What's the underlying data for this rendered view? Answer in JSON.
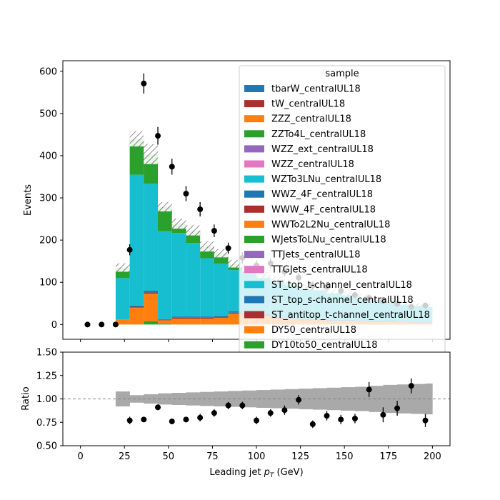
{
  "chart_data": [
    {
      "type": "bar",
      "stacked": true,
      "ylabel": "Events",
      "xlim": [
        -10,
        210
      ],
      "ylim": [
        -35,
        625
      ],
      "yticks": [
        0,
        100,
        200,
        300,
        400,
        500,
        600
      ],
      "bin_edges": [
        20,
        28,
        36,
        44,
        52,
        60,
        68,
        76,
        84,
        92,
        100,
        108,
        116,
        124,
        132,
        140,
        148,
        156,
        164,
        172,
        180,
        188,
        196,
        200
      ],
      "series": [
        {
          "name": "DY10to50_centralUL18",
          "color": "#2ca02c",
          "values": [
            0,
            0,
            8,
            2,
            0,
            0,
            0,
            0,
            0,
            0,
            0,
            0,
            0,
            0,
            0,
            0,
            0,
            0,
            0,
            0,
            0,
            0,
            0
          ]
        },
        {
          "name": "DY50_centralUL18",
          "color": "#ff7f0e",
          "values": [
            12,
            40,
            65,
            8,
            14,
            14,
            14,
            16,
            26,
            22,
            20,
            14,
            12,
            10,
            10,
            8,
            8,
            7,
            6,
            6,
            5,
            4,
            4
          ]
        },
        {
          "name": "ST_antitop_t-channel_centralUL18",
          "color": "#a9302f",
          "values": [
            0,
            2,
            3,
            1,
            2,
            2,
            2,
            2,
            2,
            2,
            2,
            2,
            1,
            1,
            1,
            1,
            1,
            1,
            1,
            1,
            1,
            1,
            1
          ]
        },
        {
          "name": "ST_top_s-channel_centralUL18",
          "color": "#1f77b4",
          "values": [
            0,
            3,
            4,
            2,
            3,
            3,
            3,
            3,
            3,
            3,
            3,
            2,
            2,
            2,
            2,
            2,
            2,
            2,
            2,
            2,
            1,
            1,
            1
          ]
        },
        {
          "name": "ST_top_t-channel_centralUL18",
          "color": "#17becf",
          "values": [
            98,
            310,
            254,
            208,
            198,
            174,
            138,
            123,
            98,
            93,
            84,
            83,
            78,
            72,
            68,
            64,
            59,
            55,
            50,
            46,
            42,
            40,
            37
          ]
        },
        {
          "name": "TTGJets_centralUL18",
          "color": "#e377c2",
          "values": [
            0,
            0,
            0,
            0,
            0,
            0,
            0,
            0,
            0,
            0,
            0,
            0,
            0,
            0,
            0,
            0,
            0,
            0,
            0,
            0,
            0,
            0,
            0
          ]
        },
        {
          "name": "TTJets_centralUL18",
          "color": "#9467bd",
          "values": [
            0,
            0,
            0,
            0,
            0,
            0,
            0,
            0,
            0,
            0,
            0,
            0,
            0,
            0,
            0,
            0,
            0,
            0,
            0,
            0,
            0,
            0,
            0
          ]
        },
        {
          "name": "WJetsToLNu_centralUL18",
          "color": "#2ca02c",
          "values": [
            25,
            85,
            70,
            58,
            22,
            30,
            28,
            25,
            15,
            14,
            8,
            8,
            6,
            5,
            5,
            4,
            4,
            3,
            3,
            3,
            2,
            2,
            2
          ]
        },
        {
          "name": "WWTo2L2Nu_centralUL18",
          "color": "#ff7f0e",
          "values": [
            0,
            0,
            0,
            0,
            0,
            0,
            0,
            0,
            0,
            0,
            0,
            0,
            0,
            0,
            0,
            0,
            0,
            0,
            0,
            0,
            0,
            0,
            0
          ]
        },
        {
          "name": "WWW_4F_centralUL18",
          "color": "#a9302f",
          "values": [
            0,
            0,
            0,
            0,
            0,
            0,
            0,
            0,
            0,
            0,
            0,
            0,
            0,
            0,
            0,
            0,
            0,
            0,
            0,
            0,
            0,
            0,
            0
          ]
        },
        {
          "name": "WWZ_4F_centralUL18",
          "color": "#1f77b4",
          "values": [
            0,
            0,
            0,
            0,
            0,
            0,
            0,
            0,
            0,
            0,
            0,
            0,
            0,
            0,
            0,
            0,
            0,
            0,
            0,
            0,
            0,
            0,
            0
          ]
        },
        {
          "name": "WZTo3LNu_centralUL18",
          "color": "#17becf",
          "values": [
            0,
            0,
            0,
            0,
            0,
            0,
            0,
            0,
            0,
            0,
            0,
            0,
            0,
            0,
            0,
            0,
            0,
            0,
            0,
            0,
            0,
            0,
            0
          ]
        },
        {
          "name": "WZZ_centralUL18",
          "color": "#e377c2",
          "values": [
            0,
            0,
            0,
            0,
            0,
            0,
            0,
            0,
            0,
            0,
            0,
            0,
            0,
            0,
            0,
            0,
            0,
            0,
            0,
            0,
            0,
            0,
            0
          ]
        },
        {
          "name": "WZZ_ext_centralUL18",
          "color": "#9467bd",
          "values": [
            0,
            0,
            0,
            0,
            0,
            0,
            0,
            0,
            0,
            0,
            0,
            0,
            0,
            0,
            0,
            0,
            0,
            0,
            0,
            0,
            0,
            0,
            0
          ]
        },
        {
          "name": "ZZTo4L_centralUL18",
          "color": "#2ca02c",
          "values": [
            0,
            0,
            0,
            0,
            0,
            0,
            0,
            0,
            0,
            0,
            0,
            0,
            0,
            0,
            0,
            0,
            0,
            0,
            0,
            0,
            0,
            0,
            0
          ]
        },
        {
          "name": "ZZZ_centralUL18",
          "color": "#ff7f0e",
          "values": [
            0,
            0,
            0,
            0,
            0,
            0,
            0,
            0,
            0,
            0,
            0,
            0,
            0,
            0,
            0,
            0,
            0,
            0,
            0,
            0,
            0,
            0,
            0
          ]
        },
        {
          "name": "tW_centralUL18",
          "color": "#a9302f",
          "values": [
            0,
            0,
            0,
            0,
            0,
            0,
            0,
            0,
            0,
            0,
            0,
            0,
            0,
            0,
            0,
            0,
            0,
            0,
            0,
            0,
            0,
            0,
            0
          ]
        },
        {
          "name": "tbarW_centralUL18",
          "color": "#1f77b4",
          "values": [
            0,
            0,
            0,
            0,
            0,
            0,
            0,
            0,
            0,
            0,
            0,
            0,
            0,
            0,
            0,
            0,
            0,
            0,
            0,
            0,
            0,
            0,
            0
          ]
        }
      ],
      "mc_uncertainty": [
        10,
        18,
        24,
        11,
        12,
        12,
        12,
        10,
        9,
        8,
        7,
        7,
        6,
        6,
        5,
        5,
        5,
        5,
        4,
        4,
        4,
        4,
        4
      ],
      "data_points": {
        "x": [
          4,
          12,
          20,
          28,
          36,
          44,
          52,
          60,
          68,
          76,
          84,
          92,
          100,
          108,
          116,
          124,
          132,
          140,
          148,
          156,
          164,
          172,
          180,
          188,
          196
        ],
        "y": [
          0,
          0,
          0,
          177,
          571,
          447,
          374,
          310,
          273,
          222,
          181,
          158,
          140,
          145,
          125,
          111,
          92,
          89,
          80,
          70,
          63,
          55,
          49,
          42,
          45
        ],
        "yerr": [
          0,
          0,
          0,
          13,
          24,
          21,
          19,
          18,
          17,
          15,
          13,
          13,
          12,
          12,
          11,
          11,
          10,
          9,
          9,
          8,
          8,
          7,
          7,
          6,
          7
        ]
      },
      "legend": {
        "title": "sample",
        "placement": "top-right"
      }
    },
    {
      "type": "scatter",
      "xlabel": "Leading jet  $p_T$ (GeV)",
      "ylabel": "Ratio",
      "xlim": [
        -10,
        210
      ],
      "ylim": [
        0.5,
        1.5
      ],
      "xticks": [
        0,
        25,
        50,
        75,
        100,
        125,
        150,
        175,
        200
      ],
      "yticks": [
        "0.50",
        "0.75",
        "1.00",
        "1.25",
        "1.50"
      ],
      "reference_line": 1.0,
      "band_halfwidth": [
        0.08,
        0.04,
        0.05,
        0.06,
        0.065,
        0.07,
        0.075,
        0.08,
        0.085,
        0.09,
        0.095,
        0.1,
        0.105,
        0.11,
        0.115,
        0.12,
        0.125,
        0.13,
        0.14,
        0.15,
        0.155,
        0.16,
        0.165
      ],
      "points": {
        "x": [
          28,
          36,
          44,
          52,
          60,
          68,
          76,
          84,
          92,
          100,
          108,
          116,
          124,
          132,
          140,
          148,
          156,
          164,
          172,
          180,
          188,
          196
        ],
        "y": [
          0.77,
          0.78,
          0.91,
          0.76,
          0.78,
          0.8,
          0.85,
          0.93,
          0.93,
          0.77,
          0.85,
          0.88,
          0.99,
          0.73,
          0.82,
          0.78,
          0.79,
          1.1,
          0.83,
          0.9,
          1.14,
          0.77
        ],
        "yerr": [
          0.04,
          0.02,
          0.03,
          0.03,
          0.03,
          0.04,
          0.04,
          0.04,
          0.04,
          0.04,
          0.04,
          0.05,
          0.05,
          0.04,
          0.05,
          0.05,
          0.05,
          0.08,
          0.08,
          0.08,
          0.08,
          0.07
        ]
      }
    }
  ]
}
